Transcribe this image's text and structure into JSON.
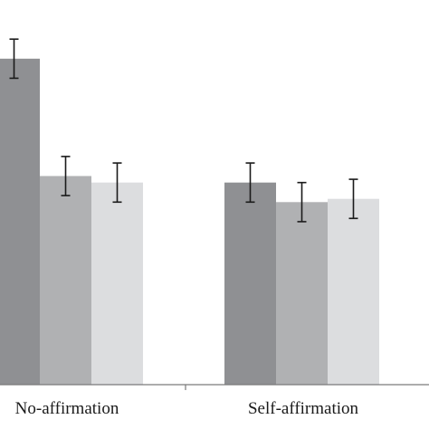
{
  "chart_data": {
    "type": "bar",
    "categories": [
      "No-affirmation",
      "Self-affirmation"
    ],
    "series": [
      {
        "color": "#8f9093",
        "values": [
          100,
          62
        ],
        "errors": [
          6,
          6
        ]
      },
      {
        "color": "#b0b1b3",
        "values": [
          64,
          56
        ],
        "errors": [
          6,
          6
        ]
      },
      {
        "color": "#dcdddf",
        "values": [
          62,
          57
        ],
        "errors": [
          6,
          6
        ]
      }
    ],
    "ylim": [
      0,
      118
    ],
    "grid": false,
    "legend": "none"
  }
}
